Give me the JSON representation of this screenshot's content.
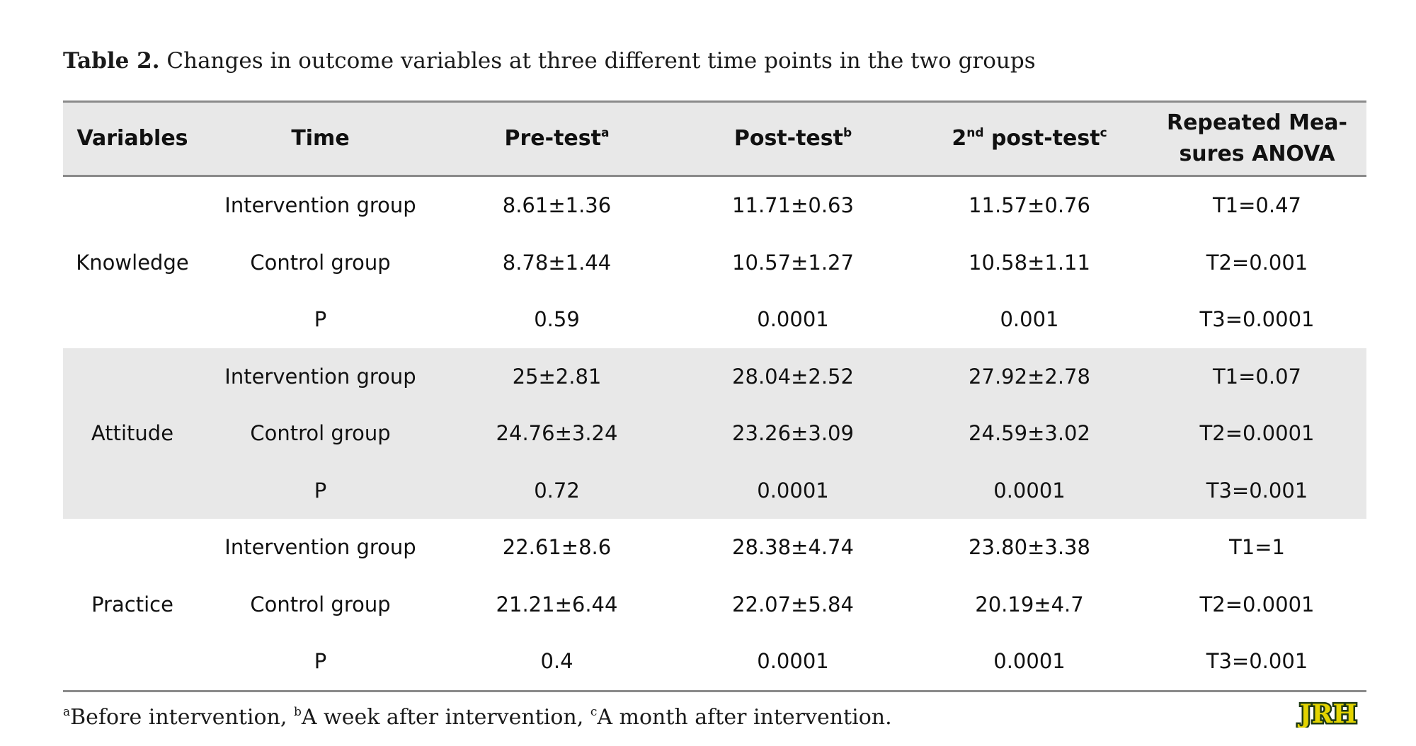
{
  "caption": {
    "label": "Table 2.",
    "text": "Changes in outcome variables at three different time points in the two groups"
  },
  "table": {
    "headers": {
      "variables": "Variables",
      "time": "Time",
      "pre_test": "Pre-test",
      "pre_test_sup": "a",
      "post_test": "Post-test",
      "post_test_sup": "b",
      "second_post_prefix": "2",
      "second_post_sup_nd": "nd",
      "second_post_suffix": " post-test",
      "second_post_sup": "c",
      "anova_line1": "Repeated Mea-",
      "anova_line2": "sures ANOVA"
    },
    "groups": [
      {
        "variable": "Knowledge",
        "rows": [
          {
            "time": "Intervention group",
            "pre": "8.61±1.36",
            "post": "11.71±0.63",
            "post2": "11.57±0.76",
            "anova": "T1=0.47"
          },
          {
            "time": "Control group",
            "pre": "8.78±1.44",
            "post": "10.57±1.27",
            "post2": "10.58±1.11",
            "anova": "T2=0.001"
          },
          {
            "time": "P",
            "pre": "0.59",
            "post": "0.0001",
            "post2": "0.001",
            "anova": "T3=0.0001"
          }
        ]
      },
      {
        "variable": "Attitude",
        "rows": [
          {
            "time": "Intervention group",
            "pre": "25±2.81",
            "post": "28.04±2.52",
            "post2": "27.92±2.78",
            "anova": "T1=0.07"
          },
          {
            "time": "Control group",
            "pre": "24.76±3.24",
            "post": "23.26±3.09",
            "post2": "24.59±3.02",
            "anova": "T2=0.0001"
          },
          {
            "time": "P",
            "pre": "0.72",
            "post": "0.0001",
            "post2": "0.0001",
            "anova": "T3=0.001"
          }
        ]
      },
      {
        "variable": "Practice",
        "rows": [
          {
            "time": "Intervention group",
            "pre": "22.61±8.6",
            "post": "28.38±4.74",
            "post2": "23.80±3.38",
            "anova": "T1=1"
          },
          {
            "time": "Control group",
            "pre": "21.21±6.44",
            "post": "22.07±5.84",
            "post2": "20.19±4.7",
            "anova": "T2=0.0001"
          },
          {
            "time": "P",
            "pre": "0.4",
            "post": "0.0001",
            "post2": "0.0001",
            "anova": "T3=0.001"
          }
        ]
      }
    ]
  },
  "footnote": {
    "a_sup": "a",
    "a_text": "Before intervention, ",
    "b_sup": "b",
    "b_text": "A week after intervention, ",
    "c_sup": "c",
    "c_text": "A month after intervention."
  },
  "logo": {
    "text": "JRH",
    "fill_color": "#e3d400",
    "stroke_color": "#1f3a14"
  }
}
